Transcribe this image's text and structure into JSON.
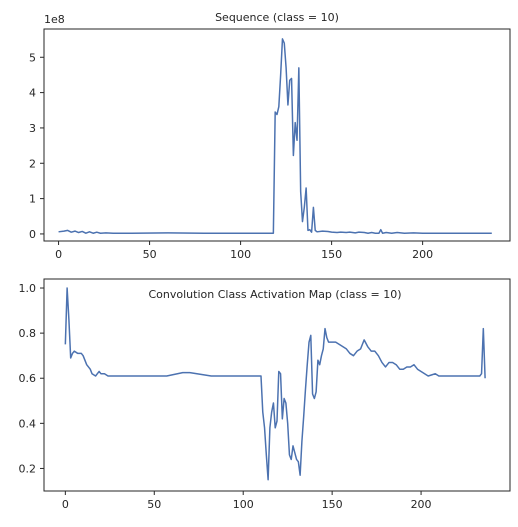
{
  "chart_data": [
    {
      "type": "line",
      "title": "Sequence (class = 10)",
      "xlabel": "",
      "ylabel": "",
      "offset_label": "1e8",
      "xlim": [
        -8,
        248
      ],
      "ylim": [
        -0.2,
        5.8
      ],
      "xticks": [
        0,
        50,
        100,
        150,
        200
      ],
      "xtick_labels": [
        "0",
        "50",
        "100",
        "150",
        "200"
      ],
      "yticks": [
        0,
        1,
        2,
        3,
        4,
        5
      ],
      "ytick_labels": [
        "0",
        "1",
        "2",
        "3",
        "4",
        "5"
      ],
      "grid": false,
      "series": [
        {
          "color": "#4c72b0",
          "points": [
            [
              0,
              0.06
            ],
            [
              3,
              0.08
            ],
            [
              5,
              0.1
            ],
            [
              7,
              0.05
            ],
            [
              9,
              0.08
            ],
            [
              11,
              0.04
            ],
            [
              13,
              0.07
            ],
            [
              15,
              0.02
            ],
            [
              17,
              0.06
            ],
            [
              19,
              0.02
            ],
            [
              21,
              0.05
            ],
            [
              23,
              0.02
            ],
            [
              26,
              0.03
            ],
            [
              30,
              0.02
            ],
            [
              40,
              0.02
            ],
            [
              60,
              0.03
            ],
            [
              80,
              0.02
            ],
            [
              100,
              0.02
            ],
            [
              118,
              0.02
            ],
            [
              119,
              3.45
            ],
            [
              120,
              3.38
            ],
            [
              121,
              3.6
            ],
            [
              122,
              4.5
            ],
            [
              123,
              5.52
            ],
            [
              124,
              5.4
            ],
            [
              125,
              4.7
            ],
            [
              126,
              3.65
            ],
            [
              127,
              4.35
            ],
            [
              128,
              4.4
            ],
            [
              129,
              2.22
            ],
            [
              130,
              3.15
            ],
            [
              131,
              2.65
            ],
            [
              132,
              4.7
            ],
            [
              133,
              1.2
            ],
            [
              134,
              0.35
            ],
            [
              135,
              0.75
            ],
            [
              136,
              1.3
            ],
            [
              137,
              0.1
            ],
            [
              138,
              0.12
            ],
            [
              139,
              0.05
            ],
            [
              140,
              0.75
            ],
            [
              141,
              0.1
            ],
            [
              142,
              0.06
            ],
            [
              145,
              0.08
            ],
            [
              148,
              0.07
            ],
            [
              150,
              0.05
            ],
            [
              153,
              0.04
            ],
            [
              155,
              0.05
            ],
            [
              158,
              0.04
            ],
            [
              160,
              0.05
            ],
            [
              163,
              0.03
            ],
            [
              165,
              0.05
            ],
            [
              168,
              0.04
            ],
            [
              170,
              0.02
            ],
            [
              172,
              0.04
            ],
            [
              174,
              0.02
            ],
            [
              176,
              0.02
            ],
            [
              177,
              0.12
            ],
            [
              178,
              0.02
            ],
            [
              180,
              0.04
            ],
            [
              183,
              0.02
            ],
            [
              186,
              0.04
            ],
            [
              190,
              0.02
            ],
            [
              195,
              0.03
            ],
            [
              200,
              0.02
            ],
            [
              210,
              0.02
            ],
            [
              220,
              0.02
            ],
            [
              230,
              0.02
            ],
            [
              238,
              0.02
            ]
          ]
        }
      ]
    },
    {
      "type": "line",
      "title": "Convolution Class Activation Map (class = 10)",
      "xlabel": "",
      "ylabel": "",
      "xlim": [
        -12,
        250
      ],
      "ylim": [
        0.1,
        1.04
      ],
      "xticks": [
        0,
        50,
        100,
        150,
        200
      ],
      "xtick_labels": [
        "0",
        "50",
        "100",
        "150",
        "200"
      ],
      "yticks": [
        0.2,
        0.4,
        0.6,
        0.8,
        1.0
      ],
      "ytick_labels": [
        "0.2",
        "0.4",
        "0.6",
        "0.8",
        "1.0"
      ],
      "grid": false,
      "series": [
        {
          "color": "#4c72b0",
          "points": [
            [
              0,
              0.75
            ],
            [
              1,
              1.0
            ],
            [
              2,
              0.86
            ],
            [
              3,
              0.69
            ],
            [
              4,
              0.71
            ],
            [
              5,
              0.72
            ],
            [
              7,
              0.71
            ],
            [
              9,
              0.71
            ],
            [
              10,
              0.7
            ],
            [
              11,
              0.68
            ],
            [
              12,
              0.66
            ],
            [
              14,
              0.64
            ],
            [
              15,
              0.62
            ],
            [
              17,
              0.61
            ],
            [
              18,
              0.62
            ],
            [
              19,
              0.63
            ],
            [
              20,
              0.62
            ],
            [
              22,
              0.62
            ],
            [
              24,
              0.61
            ],
            [
              30,
              0.61
            ],
            [
              40,
              0.61
            ],
            [
              50,
              0.61
            ],
            [
              55,
              0.61
            ],
            [
              57,
              0.61
            ],
            [
              60,
              0.615
            ],
            [
              63,
              0.62
            ],
            [
              66,
              0.625
            ],
            [
              70,
              0.625
            ],
            [
              74,
              0.62
            ],
            [
              78,
              0.615
            ],
            [
              82,
              0.61
            ],
            [
              90,
              0.61
            ],
            [
              100,
              0.61
            ],
            [
              110,
              0.61
            ],
            [
              111,
              0.45
            ],
            [
              112,
              0.38
            ],
            [
              113,
              0.26
            ],
            [
              114,
              0.15
            ],
            [
              115,
              0.38
            ],
            [
              116,
              0.45
            ],
            [
              117,
              0.49
            ],
            [
              118,
              0.38
            ],
            [
              119,
              0.41
            ],
            [
              120,
              0.63
            ],
            [
              121,
              0.62
            ],
            [
              122,
              0.42
            ],
            [
              123,
              0.51
            ],
            [
              124,
              0.49
            ],
            [
              125,
              0.4
            ],
            [
              126,
              0.26
            ],
            [
              127,
              0.24
            ],
            [
              128,
              0.3
            ],
            [
              129,
              0.27
            ],
            [
              130,
              0.24
            ],
            [
              131,
              0.23
            ],
            [
              132,
              0.17
            ],
            [
              133,
              0.32
            ],
            [
              134,
              0.43
            ],
            [
              135,
              0.55
            ],
            [
              136,
              0.66
            ],
            [
              137,
              0.76
            ],
            [
              138,
              0.79
            ],
            [
              139,
              0.53
            ],
            [
              140,
              0.51
            ],
            [
              141,
              0.54
            ],
            [
              142,
              0.68
            ],
            [
              143,
              0.66
            ],
            [
              144,
              0.7
            ],
            [
              145,
              0.73
            ],
            [
              146,
              0.82
            ],
            [
              147,
              0.78
            ],
            [
              148,
              0.76
            ],
            [
              150,
              0.76
            ],
            [
              152,
              0.76
            ],
            [
              154,
              0.75
            ],
            [
              156,
              0.74
            ],
            [
              158,
              0.73
            ],
            [
              160,
              0.71
            ],
            [
              162,
              0.7
            ],
            [
              164,
              0.72
            ],
            [
              166,
              0.73
            ],
            [
              168,
              0.77
            ],
            [
              170,
              0.74
            ],
            [
              172,
              0.72
            ],
            [
              174,
              0.72
            ],
            [
              176,
              0.7
            ],
            [
              178,
              0.67
            ],
            [
              180,
              0.65
            ],
            [
              182,
              0.67
            ],
            [
              184,
              0.67
            ],
            [
              186,
              0.66
            ],
            [
              188,
              0.64
            ],
            [
              190,
              0.64
            ],
            [
              192,
              0.65
            ],
            [
              194,
              0.65
            ],
            [
              196,
              0.66
            ],
            [
              198,
              0.64
            ],
            [
              200,
              0.63
            ],
            [
              202,
              0.62
            ],
            [
              204,
              0.61
            ],
            [
              206,
              0.615
            ],
            [
              208,
              0.62
            ],
            [
              210,
              0.61
            ],
            [
              215,
              0.61
            ],
            [
              220,
              0.61
            ],
            [
              225,
              0.61
            ],
            [
              230,
              0.61
            ],
            [
              233,
              0.61
            ],
            [
              234,
              0.62
            ],
            [
              235,
              0.82
            ],
            [
              236,
              0.6
            ]
          ]
        }
      ]
    }
  ]
}
